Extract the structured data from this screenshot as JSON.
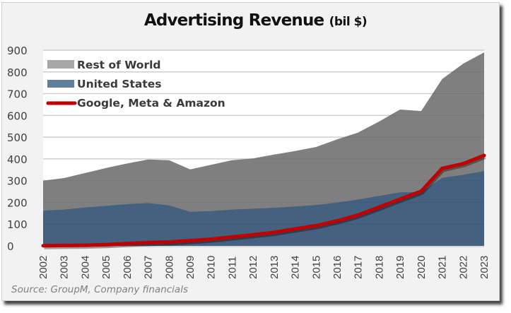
{
  "chart_data": {
    "type": "area",
    "title": "Advertising Revenue",
    "title_unit": "(bil $)",
    "xlabel": "",
    "ylabel": "",
    "ylim": [
      0,
      900
    ],
    "yticks": [
      0,
      100,
      200,
      300,
      400,
      500,
      600,
      700,
      800,
      900
    ],
    "grid": true,
    "legend_position": "top-left",
    "categories": [
      "2002",
      "2003",
      "2004",
      "2005",
      "2006",
      "2007",
      "2008",
      "2009",
      "2010",
      "2011",
      "2012",
      "2013",
      "2014",
      "2015",
      "2016",
      "2017",
      "2018",
      "2019",
      "2020",
      "2021",
      "2022",
      "2023"
    ],
    "series": [
      {
        "name": "Rest of World",
        "kind": "area-total",
        "color": "#7f7f7f",
        "legend_color": "#a6a6a6",
        "values": [
          300,
          312,
          335,
          358,
          379,
          397,
          394,
          352,
          373,
          394,
          402,
          420,
          436,
          455,
          490,
          521,
          572,
          627,
          620,
          767,
          838,
          890
        ]
      },
      {
        "name": "United States",
        "kind": "area",
        "color": "#44617f",
        "legend_color": "#5f7f9f",
        "values": [
          162,
          167,
          176,
          184,
          192,
          197,
          186,
          157,
          160,
          167,
          171,
          175,
          181,
          188,
          199,
          213,
          230,
          246,
          248,
          313,
          327,
          344
        ]
      },
      {
        "name": "Google, Meta & Amazon",
        "kind": "line",
        "color": "#c00000",
        "values": [
          1,
          2,
          3,
          6,
          11,
          15,
          18,
          24,
          31,
          41,
          51,
          62,
          78,
          93,
          115,
          142,
          178,
          215,
          251,
          356,
          378,
          416
        ]
      }
    ],
    "notes": "Rest of World area is drawn as total (US + Rest of World) stacked top."
  },
  "source": "Source: GroupM, Company financials"
}
